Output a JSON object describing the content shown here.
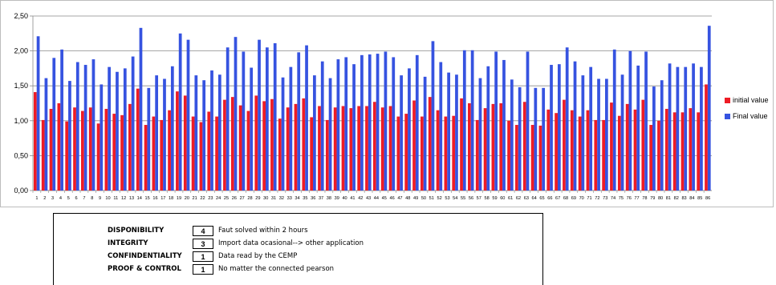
{
  "chart_data": {
    "type": "bar",
    "categories": [
      "1",
      "2",
      "3",
      "4",
      "5",
      "6",
      "7",
      "8",
      "9",
      "10",
      "11",
      "12",
      "13",
      "14",
      "15",
      "16",
      "17",
      "18",
      "19",
      "20",
      "21",
      "22",
      "23",
      "24",
      "25",
      "26",
      "27",
      "28",
      "29",
      "30",
      "31",
      "32",
      "33",
      "34",
      "35",
      "36",
      "37",
      "38",
      "39",
      "40",
      "41",
      "42",
      "43",
      "44",
      "45",
      "46",
      "47",
      "48",
      "49",
      "50",
      "51",
      "52",
      "53",
      "54",
      "55",
      "56",
      "57",
      "58",
      "59",
      "60",
      "61",
      "62",
      "63",
      "64",
      "65",
      "66",
      "67",
      "68",
      "69",
      "70",
      "71",
      "72",
      "73",
      "74",
      "75",
      "76",
      "77",
      "78",
      "79",
      "80",
      "81",
      "82",
      "83",
      "84",
      "85",
      "86"
    ],
    "series": [
      {
        "name": "initial value",
        "color": "#ee1c25",
        "values": [
          1.41,
          1.01,
          1.17,
          1.25,
          0.99,
          1.19,
          1.14,
          1.19,
          0.96,
          1.17,
          1.1,
          1.08,
          1.24,
          1.46,
          0.94,
          1.06,
          1.01,
          1.15,
          1.42,
          1.36,
          1.06,
          0.98,
          1.13,
          1.06,
          1.3,
          1.34,
          1.22,
          1.14,
          1.36,
          1.28,
          1.31,
          1.03,
          1.19,
          1.24,
          1.32,
          1.05,
          1.21,
          1.01,
          1.19,
          1.21,
          1.18,
          1.21,
          1.21,
          1.27,
          1.19,
          1.21,
          1.06,
          1.1,
          1.29,
          1.06,
          1.34,
          1.15,
          1.06,
          1.07,
          1.32,
          1.25,
          1.01,
          1.18,
          1.24,
          1.25,
          1.0,
          0.94,
          1.27,
          0.94,
          0.93,
          1.16,
          1.11,
          1.3,
          1.15,
          1.06,
          1.15,
          1.01,
          1.01,
          1.26,
          1.07,
          1.24,
          1.16,
          1.3,
          0.94,
          1.0,
          1.17,
          1.12,
          1.12,
          1.18,
          1.12,
          1.52
        ]
      },
      {
        "name": "Final value",
        "color": "#3653e0",
        "values": [
          2.21,
          1.61,
          1.9,
          2.02,
          1.57,
          1.84,
          1.8,
          1.88,
          1.52,
          1.77,
          1.7,
          1.75,
          1.92,
          2.33,
          1.47,
          1.65,
          1.6,
          1.78,
          2.25,
          2.16,
          1.65,
          1.58,
          1.72,
          1.66,
          2.05,
          2.2,
          1.99,
          1.76,
          2.16,
          2.05,
          2.11,
          1.62,
          1.77,
          1.98,
          2.08,
          1.65,
          1.85,
          1.61,
          1.88,
          1.91,
          1.81,
          1.94,
          1.95,
          1.96,
          1.99,
          1.91,
          1.65,
          1.75,
          1.94,
          1.63,
          2.14,
          1.84,
          1.69,
          1.66,
          2.01,
          2.01,
          1.61,
          1.78,
          1.99,
          1.87,
          1.59,
          1.48,
          1.99,
          1.47,
          1.47,
          1.8,
          1.81,
          2.05,
          1.85,
          1.65,
          1.77,
          1.6,
          1.6,
          2.02,
          1.66,
          2.0,
          1.79,
          1.99,
          1.49,
          1.58,
          1.82,
          1.77,
          1.77,
          1.82,
          1.77,
          2.36
        ]
      }
    ],
    "ylim": [
      0,
      2.5
    ],
    "y_ticks": [
      "0,00",
      "0,50",
      "1,00",
      "1,50",
      "2,00",
      "2,50"
    ],
    "grid": true,
    "legend": "right"
  },
  "info": [
    {
      "label": "DISPONIBILITY",
      "value": "4",
      "desc": "Faut solved within 2 hours"
    },
    {
      "label": "INTEGRITY",
      "value": "3",
      "desc": "Import data ocasional--> other application"
    },
    {
      "label": "CONFINDENTIALITY",
      "value": "1",
      "desc": "Data read by the CEMP"
    },
    {
      "label": "PROOF & CONTROL",
      "value": "1",
      "desc": "No matter the connected pearson"
    }
  ]
}
